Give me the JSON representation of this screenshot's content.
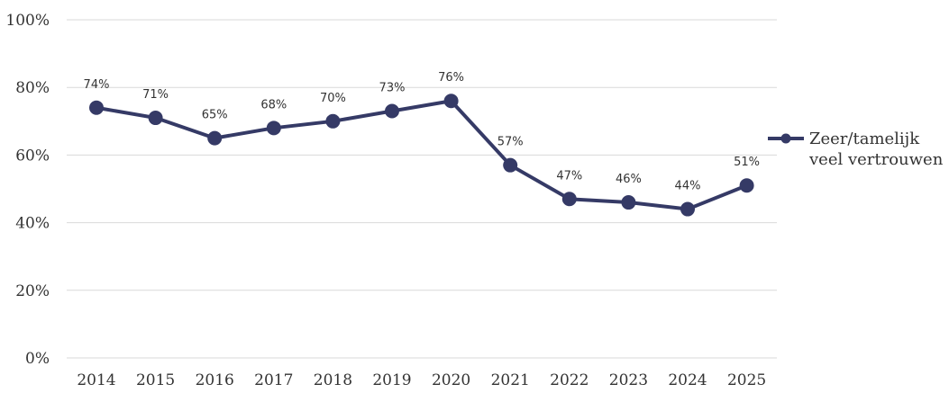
{
  "chart_data": {
    "type": "line",
    "categories": [
      "2014",
      "2015",
      "2016",
      "2017",
      "2018",
      "2019",
      "2020",
      "2021",
      "2022",
      "2023",
      "2024",
      "2025"
    ],
    "series": [
      {
        "name": "Zeer/tamelijk veel vertrouwen",
        "values": [
          74,
          71,
          65,
          68,
          70,
          73,
          76,
          57,
          47,
          46,
          44,
          51
        ],
        "labels": [
          "74%",
          "71%",
          "65%",
          "68%",
          "70%",
          "73%",
          "76%",
          "57%",
          "47%",
          "46%",
          "44%",
          "51%"
        ],
        "color": "#353a66"
      }
    ],
    "y_ticks": [
      "0%",
      "20%",
      "40%",
      "60%",
      "80%",
      "100%"
    ],
    "ylim": [
      0,
      100
    ],
    "grid": true,
    "legend": {
      "position": "right",
      "lines": [
        "Zeer/tamelijk",
        "veel vertrouwen"
      ]
    }
  }
}
